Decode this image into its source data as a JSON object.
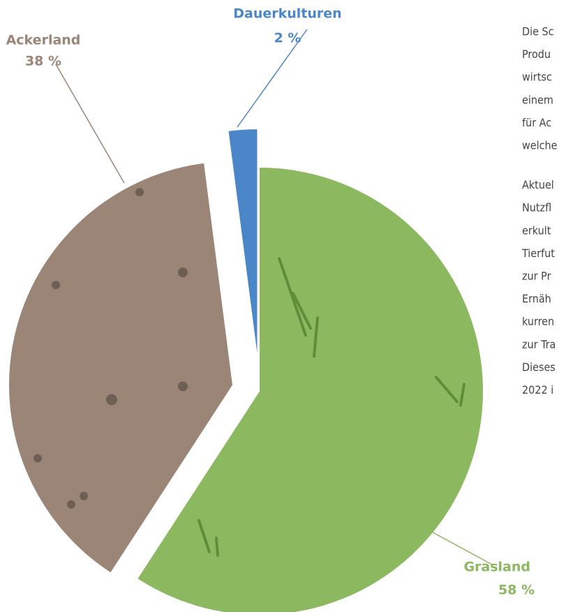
{
  "chart_data": {
    "type": "pie",
    "categories": [
      "Grasland",
      "Ackerland",
      "Dauerkulturen"
    ],
    "values": [
      58,
      38,
      2
    ],
    "value_labels": [
      "58 %",
      "38 %",
      "2 %"
    ],
    "colors": [
      "#8cb860",
      "#9b8576",
      "#4a86c8"
    ]
  },
  "side_text": {
    "paragraphs": [
      [
        "Die Sc",
        "Produ",
        "wirtsc",
        "einem",
        "für Ac",
        "welche"
      ],
      [
        "Aktuel",
        "Nutzfl",
        "erkult",
        "Tierfut",
        "zur Pr",
        "Ernäh",
        "kurren",
        "zur Tra",
        "Dieses",
        "2022 i"
      ]
    ]
  }
}
